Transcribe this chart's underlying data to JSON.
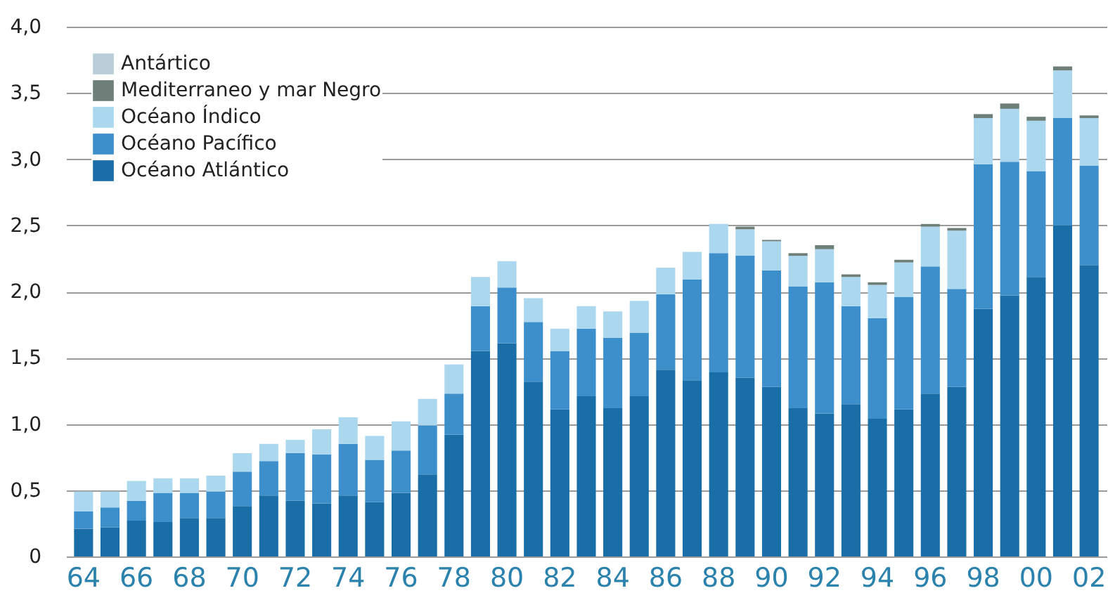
{
  "chart_data": {
    "type": "bar",
    "stacked": true,
    "categories": [
      "64",
      null,
      "66",
      null,
      "68",
      null,
      "70",
      null,
      "72",
      null,
      "74",
      null,
      "76",
      null,
      "78",
      null,
      "80",
      null,
      "82",
      null,
      "84",
      null,
      "86",
      null,
      "88",
      null,
      "90",
      null,
      "92",
      null,
      "94",
      null,
      "96",
      null,
      "98",
      null,
      "00",
      null,
      "02"
    ],
    "series": [
      {
        "name": "Océano Atlántico",
        "color": "#1a6ea8",
        "values": [
          0.21,
          0.22,
          0.27,
          0.26,
          0.29,
          0.29,
          0.38,
          0.46,
          0.42,
          0.4,
          0.46,
          0.41,
          0.48,
          0.62,
          0.92,
          1.55,
          1.61,
          1.32,
          1.11,
          1.21,
          1.12,
          1.21,
          1.41,
          1.33,
          1.39,
          1.35,
          1.28,
          1.12,
          1.08,
          1.15,
          1.04,
          1.11,
          1.23,
          1.28,
          1.87,
          1.97,
          2.11,
          2.5,
          2.2
        ]
      },
      {
        "name": "Océano Pacífico",
        "color": "#3d8fcb",
        "values": [
          0.13,
          0.15,
          0.15,
          0.22,
          0.19,
          0.2,
          0.26,
          0.26,
          0.36,
          0.37,
          0.39,
          0.32,
          0.32,
          0.37,
          0.31,
          0.34,
          0.42,
          0.45,
          0.44,
          0.51,
          0.53,
          0.48,
          0.57,
          0.76,
          0.9,
          0.92,
          0.88,
          0.92,
          0.99,
          0.74,
          0.76,
          0.85,
          0.96,
          0.74,
          1.09,
          1.01,
          0.8,
          0.81,
          0.75
        ]
      },
      {
        "name": "Océano Índico",
        "color": "#acd8ef",
        "values": [
          0.15,
          0.12,
          0.15,
          0.11,
          0.11,
          0.12,
          0.14,
          0.13,
          0.1,
          0.19,
          0.2,
          0.18,
          0.22,
          0.2,
          0.22,
          0.22,
          0.2,
          0.18,
          0.17,
          0.17,
          0.2,
          0.24,
          0.2,
          0.21,
          0.22,
          0.2,
          0.22,
          0.23,
          0.25,
          0.22,
          0.25,
          0.26,
          0.3,
          0.44,
          0.35,
          0.4,
          0.38,
          0.36,
          0.36
        ]
      },
      {
        "name": "Mediterraneo y mar Negro",
        "color": "#6d7f78",
        "values": [
          0,
          0,
          0,
          0,
          0,
          0,
          0,
          0,
          0,
          0,
          0,
          0,
          0,
          0,
          0,
          0,
          0,
          0,
          0,
          0,
          0,
          0,
          0,
          0,
          0,
          0.02,
          0.01,
          0.02,
          0.03,
          0.02,
          0.02,
          0.02,
          0.02,
          0.02,
          0.03,
          0.04,
          0.03,
          0.03,
          0.02
        ]
      },
      {
        "name": "Antártico",
        "color": "#b9ced8",
        "values": [
          0,
          0,
          0,
          0,
          0,
          0,
          0,
          0,
          0,
          0,
          0,
          0,
          0,
          0,
          0,
          0,
          0,
          0,
          0,
          0,
          0,
          0,
          0,
          0,
          0,
          0,
          0,
          0,
          0,
          0,
          0,
          0,
          0,
          0,
          0,
          0,
          0,
          0,
          0
        ]
      }
    ],
    "ylim": [
      0,
      4.0
    ],
    "yticks": [
      0,
      {
        "value": 0.5,
        "label": "0,5"
      },
      {
        "value": 1.0,
        "label": "1,0"
      },
      {
        "value": 1.5,
        "label": "1,5"
      },
      {
        "value": 2.0,
        "label": "2,0"
      },
      {
        "value": 2.5,
        "label": "2,5"
      },
      {
        "value": 3.0,
        "label": "3,0"
      },
      {
        "value": 3.5,
        "label": "3,5"
      },
      {
        "value": 4.0,
        "label": "4,0"
      }
    ],
    "grid": "y",
    "legend": "top left"
  }
}
